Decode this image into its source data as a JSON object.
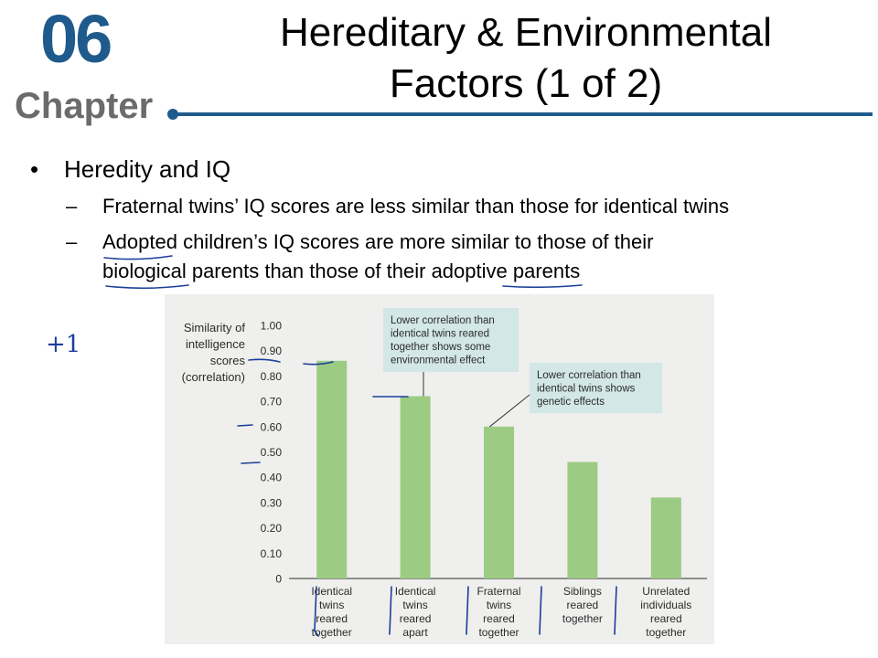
{
  "header": {
    "chapter_number": "06",
    "chapter_word": "Chapter",
    "title_line1": "Hereditary & Environmental",
    "title_line2": "Factors (1 of 2)",
    "accent_color": "#1f5a8c"
  },
  "bullets": {
    "main": "Heredity and IQ",
    "sub1": "Fraternal twins’ IQ scores are less similar than those for identical twins",
    "sub2_line1": "Adopted children’s IQ scores are more similar to those of their",
    "sub2_line2": "biological parents than those of their adoptive parents",
    "bullet_symbol": "•",
    "dash_symbol": "–"
  },
  "handwriting": {
    "plus_one": "+1"
  },
  "chart_data": {
    "type": "bar",
    "ylabel_lines": [
      "Similarity of",
      "intelligence",
      "scores",
      "(correlation)"
    ],
    "ylim": [
      0,
      1.0
    ],
    "yticks": [
      "1.00",
      "0.90",
      "0.80",
      "0.70",
      "0.60",
      "0.50",
      "0.40",
      "0.30",
      "0.20",
      "0.10",
      "0"
    ],
    "categories": [
      [
        "Identical",
        "twins",
        "reared",
        "together"
      ],
      [
        "Identical",
        "twins",
        "reared",
        "apart"
      ],
      [
        "Fraternal",
        "twins",
        "reared",
        "together"
      ],
      [
        "Siblings",
        "reared",
        "together"
      ],
      [
        "Unrelated",
        "individuals",
        "reared",
        "together"
      ]
    ],
    "values": [
      0.86,
      0.72,
      0.6,
      0.46,
      0.32
    ],
    "bar_color": "#9ccb84",
    "annotations": [
      {
        "lines": [
          "Lower correlation than",
          "identical twins reared",
          "together shows some",
          "environmental effect"
        ],
        "points_to": 1
      },
      {
        "lines": [
          "Lower correlation than",
          "identical twins shows",
          "genetic effects"
        ],
        "points_to": 2
      }
    ]
  }
}
